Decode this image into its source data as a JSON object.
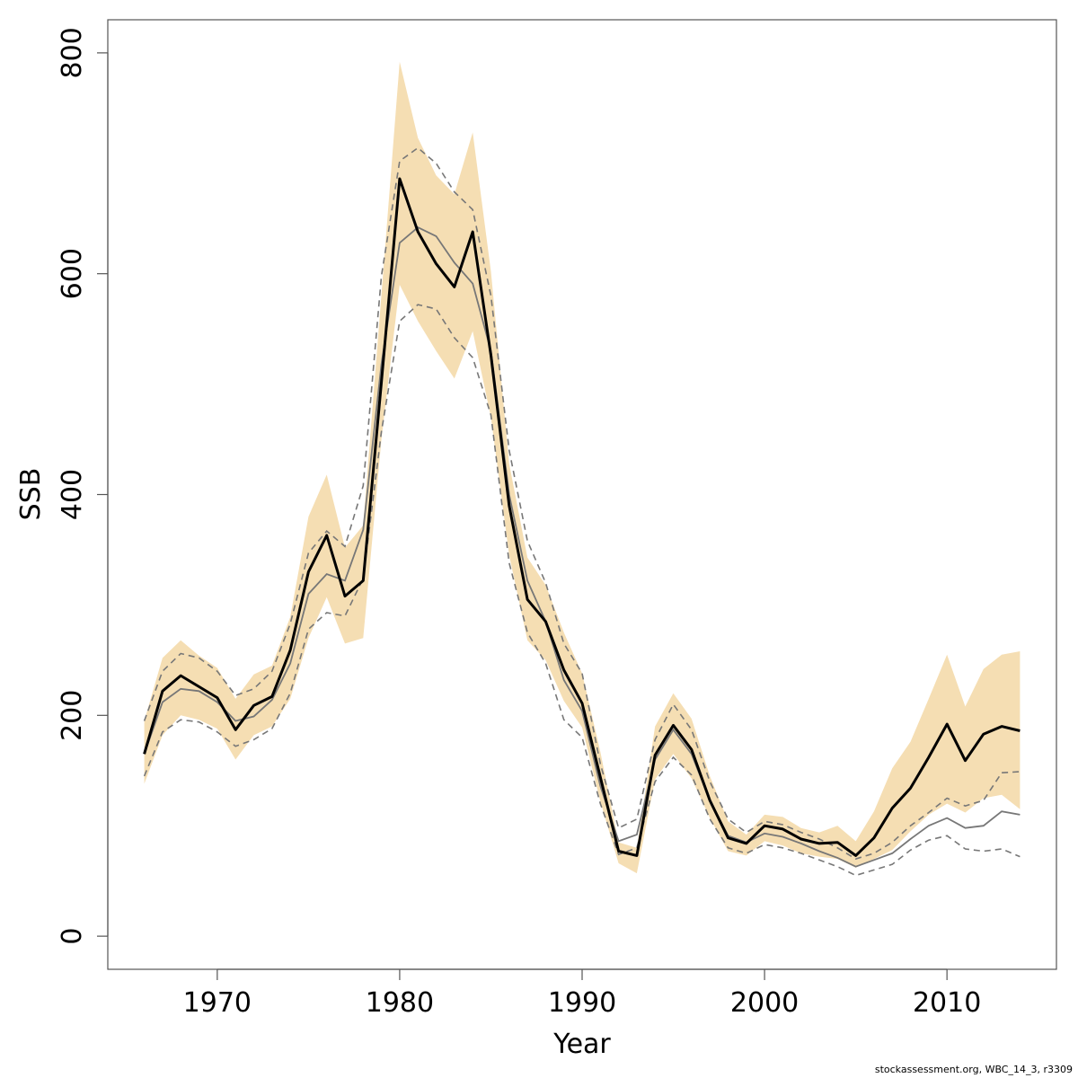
{
  "chart_data": {
    "type": "area",
    "xlabel": "Year",
    "ylabel": "SSB",
    "xlim": [
      1964,
      2016
    ],
    "ylim": [
      -30,
      830
    ],
    "xticks": [
      1970,
      1980,
      1990,
      2000,
      2010
    ],
    "yticks": [
      0,
      200,
      400,
      600,
      800
    ],
    "grid": false,
    "colors": {
      "band": "#f5deb3",
      "main": "#000000",
      "previous": "#777777"
    },
    "years": [
      1966,
      1967,
      1968,
      1969,
      1970,
      1971,
      1972,
      1973,
      1974,
      1975,
      1976,
      1977,
      1978,
      1979,
      1980,
      1981,
      1982,
      1983,
      1984,
      1985,
      1986,
      1987,
      1988,
      1989,
      1990,
      1991,
      1992,
      1993,
      1994,
      1995,
      1996,
      1997,
      1998,
      1999,
      2000,
      2001,
      2002,
      2003,
      2004,
      2005,
      2006,
      2007,
      2008,
      2009,
      2010,
      2011,
      2012,
      2013,
      2014
    ],
    "series": [
      {
        "role": "band-upper",
        "values": [
          195,
          252,
          268,
          254,
          243,
          215,
          237,
          245,
          289,
          380,
          418,
          352,
          372,
          581,
          792,
          723,
          689,
          672,
          728,
          602,
          428,
          343,
          318,
          275,
          238,
          167,
          85,
          80,
          190,
          220,
          197,
          145,
          104,
          92,
          110,
          108,
          98,
          94,
          100,
          86,
          113,
          152,
          176,
          215,
          255,
          208,
          242,
          255,
          258
        ]
      },
      {
        "role": "band-lower",
        "values": [
          138,
          182,
          200,
          196,
          188,
          160,
          182,
          190,
          215,
          270,
          307,
          265,
          270,
          450,
          590,
          557,
          530,
          505,
          548,
          470,
          345,
          268,
          250,
          213,
          189,
          122,
          66,
          57,
          142,
          165,
          143,
          107,
          77,
          73,
          86,
          82,
          75,
          72,
          70,
          62,
          70,
          78,
          95,
          110,
          120,
          112,
          125,
          128,
          115
        ]
      },
      {
        "name": "estimate",
        "role": "main",
        "values": [
          165,
          222,
          236,
          226,
          216,
          187,
          209,
          217,
          259,
          330,
          363,
          308,
          322,
          502,
          686,
          638,
          609,
          588,
          638,
          526,
          390,
          305,
          285,
          241,
          211,
          144,
          77,
          73,
          164,
          191,
          169,
          123,
          89,
          84,
          100,
          97,
          88,
          84,
          85,
          73,
          89,
          116,
          134,
          162,
          192,
          159,
          183,
          190,
          186
        ]
      },
      {
        "name": "previous",
        "role": "previous-estimate",
        "values": [
          165,
          212,
          224,
          222,
          212,
          195,
          199,
          214,
          247,
          310,
          328,
          322,
          368,
          518,
          628,
          642,
          634,
          610,
          591,
          530,
          400,
          322,
          285,
          232,
          204,
          136,
          86,
          92,
          160,
          187,
          165,
          123,
          91,
          85,
          93,
          90,
          84,
          77,
          71,
          63,
          69,
          75,
          88,
          100,
          107,
          98,
          100,
          113,
          110
        ]
      },
      {
        "name": "previous-upper",
        "role": "previous-bound",
        "values": [
          195,
          240,
          256,
          252,
          240,
          218,
          224,
          240,
          283,
          347,
          367,
          353,
          408,
          598,
          702,
          714,
          700,
          674,
          658,
          580,
          440,
          358,
          320,
          265,
          238,
          156,
          98,
          106,
          178,
          210,
          187,
          140,
          106,
          94,
          104,
          101,
          94,
          88,
          80,
          70,
          75,
          85,
          100,
          112,
          125,
          118,
          123,
          148,
          149
        ]
      },
      {
        "name": "previous-lower",
        "role": "previous-bound",
        "values": [
          145,
          185,
          196,
          194,
          185,
          172,
          178,
          188,
          220,
          278,
          293,
          290,
          324,
          457,
          557,
          572,
          568,
          542,
          524,
          472,
          338,
          275,
          247,
          196,
          180,
          120,
          74,
          80,
          140,
          162,
          146,
          106,
          80,
          75,
          83,
          80,
          75,
          69,
          63,
          55,
          60,
          65,
          78,
          87,
          91,
          79,
          77,
          79,
          72
        ]
      }
    ]
  },
  "footer": "stockassessment.org, WBC_14_3, r3309"
}
